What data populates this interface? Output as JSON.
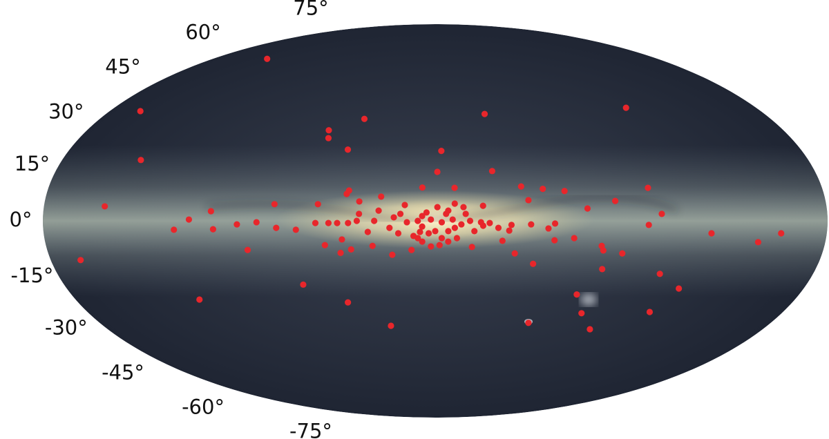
{
  "chart_data": {
    "type": "scatter",
    "projection": "mollweide",
    "color": "#e8262b",
    "yticks": [
      {
        "value": 75,
        "label": "75°"
      },
      {
        "value": 60,
        "label": "60°"
      },
      {
        "value": 45,
        "label": "45°"
      },
      {
        "value": 30,
        "label": "30°"
      },
      {
        "value": 15,
        "label": "15°"
      },
      {
        "value": 0,
        "label": "0°"
      },
      {
        "value": -15,
        "label": "-15°"
      },
      {
        "value": -30,
        "label": "-30°"
      },
      {
        "value": -45,
        "label": "-45°"
      },
      {
        "value": -60,
        "label": "-60°"
      },
      {
        "value": -75,
        "label": "-75°"
      }
    ],
    "x": [
      136,
      163,
      142,
      152,
      166,
      118,
      64,
      44,
      24,
      38,
      55,
      54,
      43,
      -27,
      -107,
      -3,
      -27,
      -1,
      -9,
      6,
      -40,
      -50,
      -60,
      -99,
      -83,
      40,
      41,
      54,
      74,
      103,
      113,
      102,
      120,
      91,
      82,
      73,
      64,
      87,
      51,
      43,
      44,
      39,
      29,
      20,
      11,
      35,
      25,
      35,
      26,
      14,
      49,
      45,
      31,
      28,
      19,
      21,
      17,
      -70,
      -104,
      -98,
      -127,
      -149,
      -159,
      -55,
      -52,
      -44,
      -35,
      -34,
      -31,
      -22,
      -18,
      -17,
      -37,
      -46,
      -55,
      -64,
      -77,
      -78,
      -79,
      -87,
      -107,
      -119,
      -111,
      -70,
      -76,
      -85,
      -50,
      10,
      6,
      2,
      -3,
      -6,
      -9,
      -6,
      -1,
      4,
      8,
      6,
      2,
      -3,
      -8,
      -12,
      -16,
      -21,
      -25,
      -29,
      6,
      0,
      13,
      16,
      36,
      40,
      55,
      -10,
      3,
      -5,
      -14,
      -9,
      -22,
      -43,
      -6,
      7,
      -2,
      8,
      -13
    ],
    "y": [
      66,
      42.2,
      22.8,
      5.4,
      -14.6,
      -29.7,
      -23.9,
      -30.8,
      -40.2,
      39,
      34.4,
      31.3,
      26.8,
      41,
      43.6,
      26.3,
      18.6,
      18.3,
      12.3,
      12.4,
      12.8,
      11.9,
      11.1,
      12.3,
      7.4,
      11.3,
      10,
      6.2,
      6.2,
      3.6,
      0.5,
      -3.1,
      -3.3,
      -1.3,
      -0.5,
      -2.6,
      -3.3,
      -10.8,
      -9,
      -6.9,
      -11.9,
      -10.6,
      -9.3,
      -12.6,
      -10.8,
      7.2,
      9,
      2.6,
      3.8,
      5.9,
      -0.8,
      -0.8,
      -4.1,
      0,
      1.3,
      -2.6,
      -4.6,
      4.6,
      2.6,
      -1.5,
      -4.6,
      -7.9,
      -4.6,
      -1,
      -2.8,
      -1.3,
      -1.5,
      -3.6,
      -7.4,
      -1.8,
      -3.8,
      -9.7,
      -12.1,
      -16,
      -7.2,
      -6.4,
      -9.3,
      -11,
      -18,
      -12.1,
      -19.8,
      -25.4,
      -34.6,
      -27.7,
      -35.1,
      -41.6,
      -39,
      -5.6,
      -7.7,
      -9.5,
      -6.4,
      -7.7,
      -2.6,
      3.8,
      5.1,
      3.1,
      0,
      -2.1,
      0.5,
      -0.5,
      0.5,
      -1.3,
      0,
      -0.5,
      -0.8,
      -2.6,
      1.8,
      -3.8,
      -0.5,
      2.6,
      0,
      -0.8,
      -0.8,
      -6.4,
      -4.6,
      2.6,
      2.6,
      6.4,
      5.6,
      7.7,
      -3.8,
      -4.1,
      -9,
      -6.4,
      5.1
    ]
  }
}
